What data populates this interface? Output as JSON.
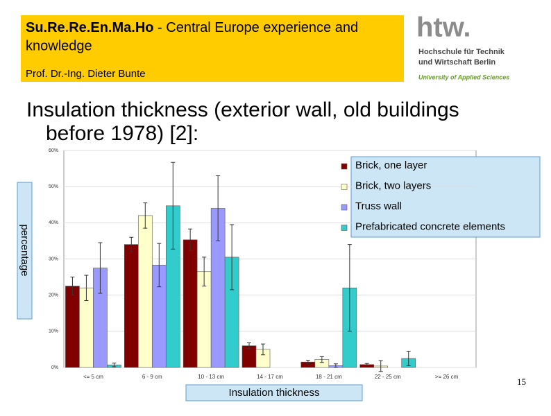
{
  "header": {
    "title": "Su.Re.Re.En.Ma.Ho",
    "title_rest": " - Central Europe experience and",
    "title_line2": "knowledge",
    "author": "Prof. Dr.-Ing. Dieter Bunte"
  },
  "logo": {
    "mark": "htw.",
    "line1": "Hochschule für Technik",
    "line2": "und Wirtschaft Berlin",
    "line3": "University of Applied Sciences"
  },
  "slide_title": {
    "line1": "Insulation thickness (exterior wall, old buildings",
    "line2": "before 1978) [2]:"
  },
  "page_number": "15",
  "chart_data": {
    "type": "bar",
    "ylabel": "percentage",
    "xlabel": "Insulation thickness",
    "categories": [
      "<= 5 cm",
      "6 - 9 cm",
      "10 - 13 cm",
      "14 - 17 cm",
      "18 - 21 cm",
      "22 - 25 cm",
      ">= 26 cm"
    ],
    "series": [
      {
        "name": "Brick, one layer",
        "color": "#800000",
        "values": [
          22.5,
          34,
          35.3,
          6,
          1.5,
          0.8,
          0
        ],
        "errors": [
          2.5,
          2,
          3,
          0.8,
          0.5,
          0.3,
          0
        ]
      },
      {
        "name": "Brick, two layers",
        "color": "#ffffcc",
        "values": [
          22,
          42,
          26.5,
          5,
          2.2,
          0.4,
          0
        ],
        "errors": [
          3.5,
          3.5,
          4,
          1.5,
          0.8,
          1.5,
          0
        ]
      },
      {
        "name": "Truss wall",
        "color": "#9999ff",
        "values": [
          27.5,
          28.3,
          44,
          0,
          0.5,
          0,
          0
        ],
        "errors": [
          7,
          6,
          9,
          0,
          0.5,
          0,
          0
        ]
      },
      {
        "name": "Prefabricated concrete elements",
        "color": "#33cccc",
        "values": [
          0.7,
          44.7,
          30.5,
          0,
          22,
          2.5,
          0
        ],
        "errors": [
          0.5,
          12,
          9,
          0,
          12,
          2,
          0
        ]
      }
    ],
    "ylim": [
      0,
      60
    ],
    "yticks": [
      {
        "value": 0,
        "label": "0%"
      },
      {
        "value": 10,
        "label": "10%"
      },
      {
        "value": 20,
        "label": "20%"
      },
      {
        "value": 30,
        "label": "30%"
      },
      {
        "value": 40,
        "label": "40%"
      },
      {
        "value": 50,
        "label": "50%"
      },
      {
        "value": 60,
        "label": "60%"
      }
    ],
    "grid": true,
    "legend": "top-right"
  }
}
